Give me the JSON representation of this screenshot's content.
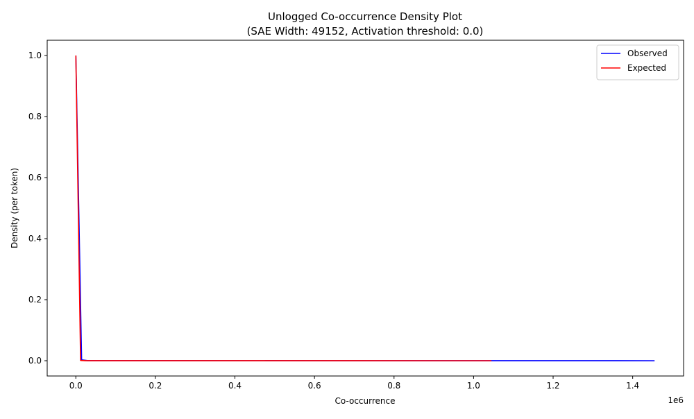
{
  "chart_data": {
    "type": "line",
    "title": "Unlogged Co-occurrence Density Plot",
    "subtitle": "(SAE Width: 49152, Activation threshold: 0.0)",
    "xlabel": "Co-occurrence",
    "ylabel": "Density (per token)",
    "x_offset_label": "1e6",
    "x_scale_factor": 1000000,
    "xlim": [
      -72000,
      1528000
    ],
    "ylim": [
      -0.05,
      1.05
    ],
    "x_ticks": [
      0,
      200000,
      400000,
      600000,
      800000,
      1000000,
      1200000,
      1400000
    ],
    "x_tick_labels": [
      "0.0",
      "0.2",
      "0.4",
      "0.6",
      "0.8",
      "1.0",
      "1.2",
      "1.4"
    ],
    "y_ticks": [
      0.0,
      0.2,
      0.4,
      0.6,
      0.8,
      1.0
    ],
    "y_tick_labels": [
      "0.0",
      "0.2",
      "0.4",
      "0.6",
      "0.8",
      "1.0"
    ],
    "grid": false,
    "legend_position": "top-right",
    "series": [
      {
        "name": "Observed",
        "color": "#0000ff",
        "x": [
          0,
          14500,
          29000,
          1455000
        ],
        "y": [
          1.0,
          0.003,
          0.0005,
          0.0
        ]
      },
      {
        "name": "Expected",
        "color": "#ff0000",
        "x": [
          0,
          12000,
          24000,
          1045000
        ],
        "y": [
          1.0,
          0.001,
          0.0002,
          0.0
        ]
      }
    ]
  }
}
